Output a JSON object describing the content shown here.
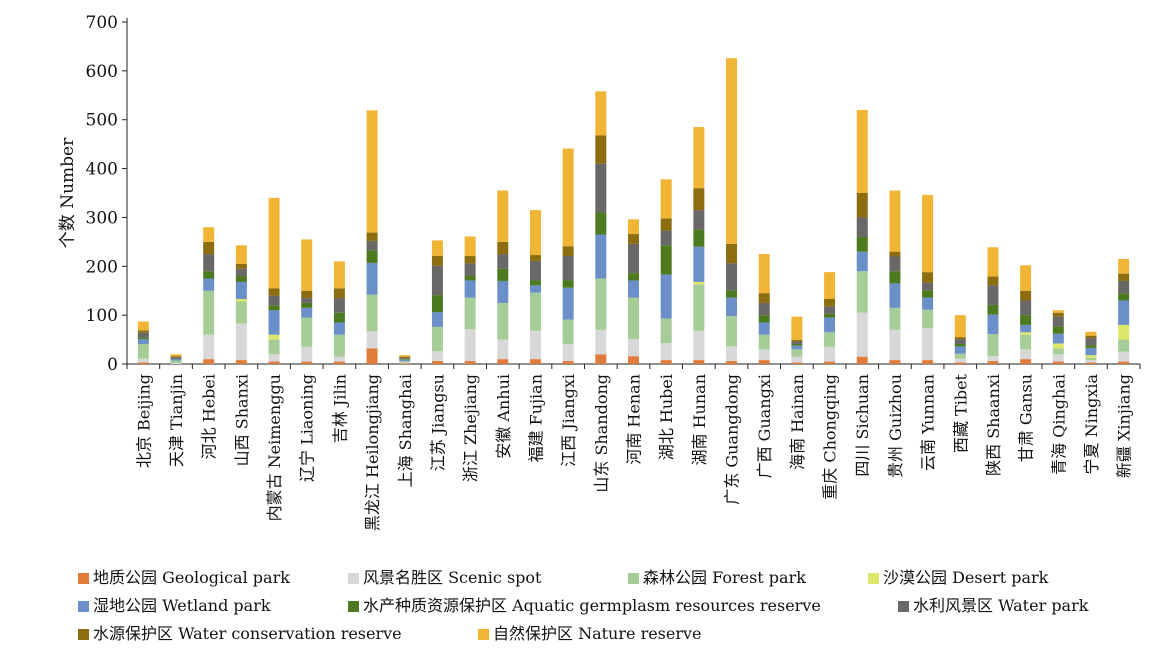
{
  "chart_data": {
    "type": "bar",
    "stacked": true,
    "ylabel": "个数 Number",
    "xlabel": "",
    "ylim": [
      0,
      700
    ],
    "yticks": [
      0,
      100,
      200,
      300,
      400,
      500,
      600,
      700
    ],
    "grid": false,
    "legend_position": "bottom",
    "categories": [
      "北京 Beijing",
      "天津 Tianjin",
      "河北 Hebei",
      "山西 Shanxi",
      "内蒙古 Neimenggu",
      "辽宁 Liaoning",
      "吉林 Jilin",
      "黑龙江 Heilongjiang",
      "上海 Shanghai",
      "江苏 Jiangsu",
      "浙江 Zhejiang",
      "安徽 Anhui",
      "福建 Fujian",
      "江西 Jiangxi",
      "山东 Shandong",
      "河南 Henan",
      "湖北 Hubei",
      "湖南 Hunan",
      "广东 Guangdong",
      "广西 Guangxi",
      "海南 Hainan",
      "重庆 Chongqing",
      "四川 Sichuan",
      "贵州 Guizhou",
      "云南 Yunnan",
      "西藏 Tibet",
      "陕西 Shaanxi",
      "甘肃 Gansu",
      "青海 Qinghai",
      "宁夏 Ningxia",
      "新疆 Xinjiang"
    ],
    "series": [
      {
        "name": "地质公园 Geological park",
        "color": "#e07b3c",
        "values": [
          3,
          0,
          10,
          8,
          5,
          5,
          5,
          32,
          1,
          6,
          6,
          10,
          10,
          6,
          20,
          16,
          8,
          8,
          6,
          8,
          3,
          5,
          15,
          8,
          8,
          3,
          6,
          10,
          5,
          3,
          5
        ]
      },
      {
        "name": "风景名胜区 Scenic spot",
        "color": "#d8d8d8",
        "values": [
          8,
          2,
          50,
          75,
          15,
          30,
          10,
          35,
          2,
          20,
          65,
          40,
          58,
          35,
          50,
          35,
          35,
          60,
          30,
          22,
          12,
          30,
          90,
          62,
          65,
          8,
          10,
          20,
          15,
          5,
          20
        ]
      },
      {
        "name": "森林公园 Forest park",
        "color": "#a6cc98",
        "values": [
          30,
          5,
          90,
          45,
          30,
          60,
          45,
          75,
          3,
          50,
          65,
          75,
          78,
          50,
          105,
          85,
          50,
          95,
          62,
          30,
          15,
          30,
          85,
          45,
          38,
          10,
          45,
          30,
          12,
          5,
          25
        ]
      },
      {
        "name": "沙漠公园 Desert park",
        "color": "#dde86a",
        "values": [
          0,
          0,
          0,
          5,
          10,
          0,
          0,
          0,
          0,
          0,
          0,
          0,
          0,
          0,
          0,
          0,
          0,
          5,
          0,
          0,
          0,
          0,
          0,
          0,
          0,
          0,
          0,
          5,
          10,
          5,
          30
        ]
      },
      {
        "name": "湿地公园 Wetland park",
        "color": "#6b8fc9",
        "values": [
          10,
          3,
          25,
          35,
          50,
          20,
          25,
          65,
          3,
          30,
          35,
          45,
          15,
          65,
          90,
          35,
          90,
          72,
          38,
          25,
          8,
          30,
          40,
          50,
          25,
          15,
          40,
          15,
          20,
          15,
          50
        ]
      },
      {
        "name": "水产种质资源保护区 Aquatic germplasm resources reserve",
        "color": "#4e7a1f",
        "values": [
          3,
          1,
          15,
          12,
          10,
          10,
          20,
          25,
          1,
          35,
          10,
          25,
          10,
          15,
          45,
          15,
          60,
          35,
          15,
          15,
          3,
          8,
          30,
          25,
          15,
          5,
          20,
          20,
          15,
          5,
          15
        ]
      },
      {
        "name": "水利风景区 Water park",
        "color": "#6a6767",
        "values": [
          10,
          3,
          35,
          15,
          20,
          10,
          30,
          20,
          2,
          60,
          25,
          30,
          40,
          50,
          100,
          60,
          30,
          40,
          55,
          25,
          5,
          15,
          40,
          30,
          15,
          10,
          40,
          30,
          20,
          15,
          25
        ]
      },
      {
        "name": "水源保护区 Water conservation reserve",
        "color": "#8c6d10",
        "values": [
          5,
          2,
          25,
          10,
          15,
          15,
          20,
          17,
          3,
          20,
          15,
          25,
          12,
          20,
          58,
          20,
          25,
          45,
          40,
          20,
          3,
          15,
          50,
          10,
          22,
          4,
          18,
          20,
          8,
          5,
          15
        ]
      },
      {
        "name": "自然保护区 Nature reserve",
        "color": "#f0b535",
        "values": [
          18,
          4,
          30,
          38,
          185,
          105,
          55,
          250,
          3,
          32,
          40,
          105,
          92,
          200,
          90,
          30,
          80,
          125,
          380,
          80,
          48,
          55,
          170,
          125,
          158,
          45,
          60,
          52,
          5,
          8,
          30
        ]
      }
    ]
  }
}
